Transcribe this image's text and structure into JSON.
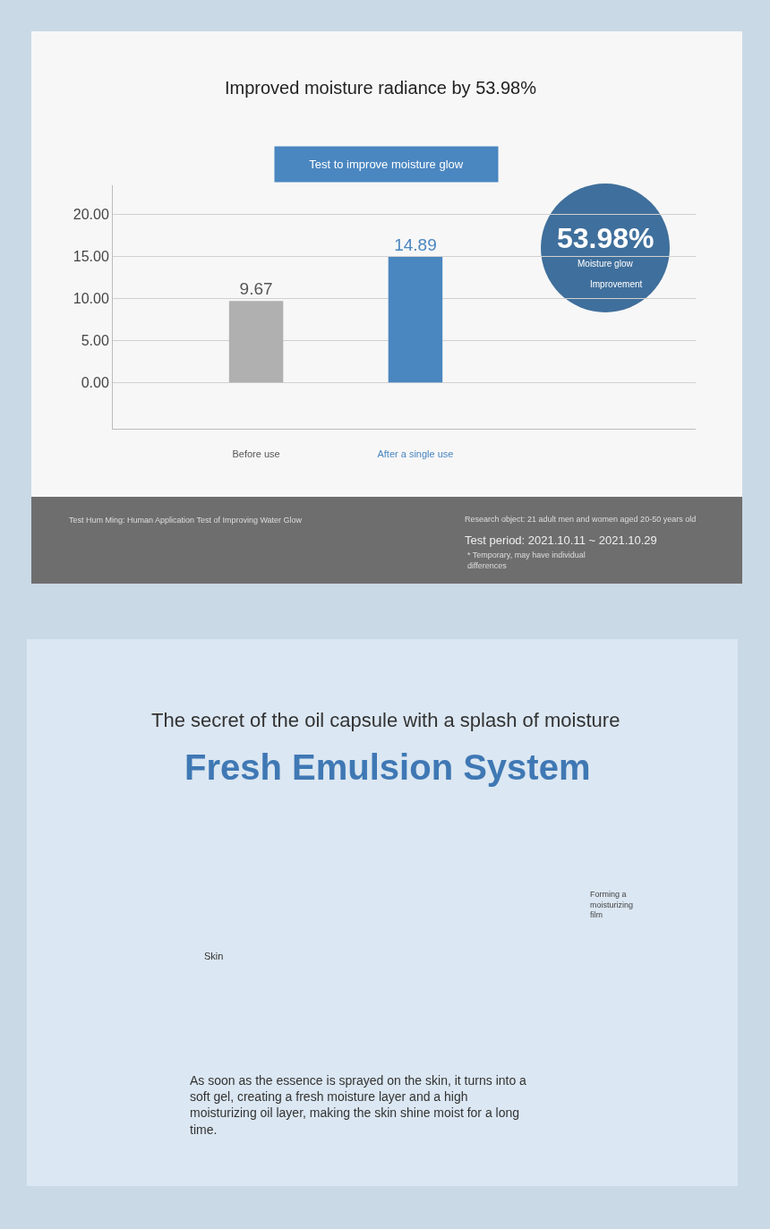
{
  "chart_data": {
    "type": "bar",
    "title": "Improved moisture radiance by 53.98%",
    "subtitle": "Test to improve moisture glow",
    "categories": [
      "Before use",
      "After a single use"
    ],
    "values": [
      9.67,
      14.89
    ],
    "colors": [
      "#b0b0b0",
      "#4a86c0"
    ],
    "data_labels": true,
    "ylim": [
      -5.5,
      23.4
    ],
    "yticks": [
      {
        "value": 0,
        "label": "0.00"
      },
      {
        "value": 5,
        "label": "5.00"
      },
      {
        "value": 10,
        "label": "10.00"
      },
      {
        "value": 15,
        "label": "15.00"
      },
      {
        "value": 20,
        "label": "20.00"
      }
    ],
    "grid": "y",
    "annotations": [
      "53.98%",
      "Moisture glow",
      "Improvement",
      "Test Hum Ming: Human Application Test of Improving Water Glow",
      "Research object: 21 adult men and women aged 20-50 years old",
      "Test period: 2021.10.11 ~ 2021.10.29",
      "* Temporary, may have individual differences",
      "The secret of the oil capsule with a splash of moisture",
      "Fresh Emulsion System",
      "Skin",
      "Forming a moisturizing film",
      "As soon as the essence is sprayed on the skin, it turns into a soft gel, creating a fresh moisture layer and a high moisturizing oil layer, making the skin shine moist for a long time."
    ]
  }
}
